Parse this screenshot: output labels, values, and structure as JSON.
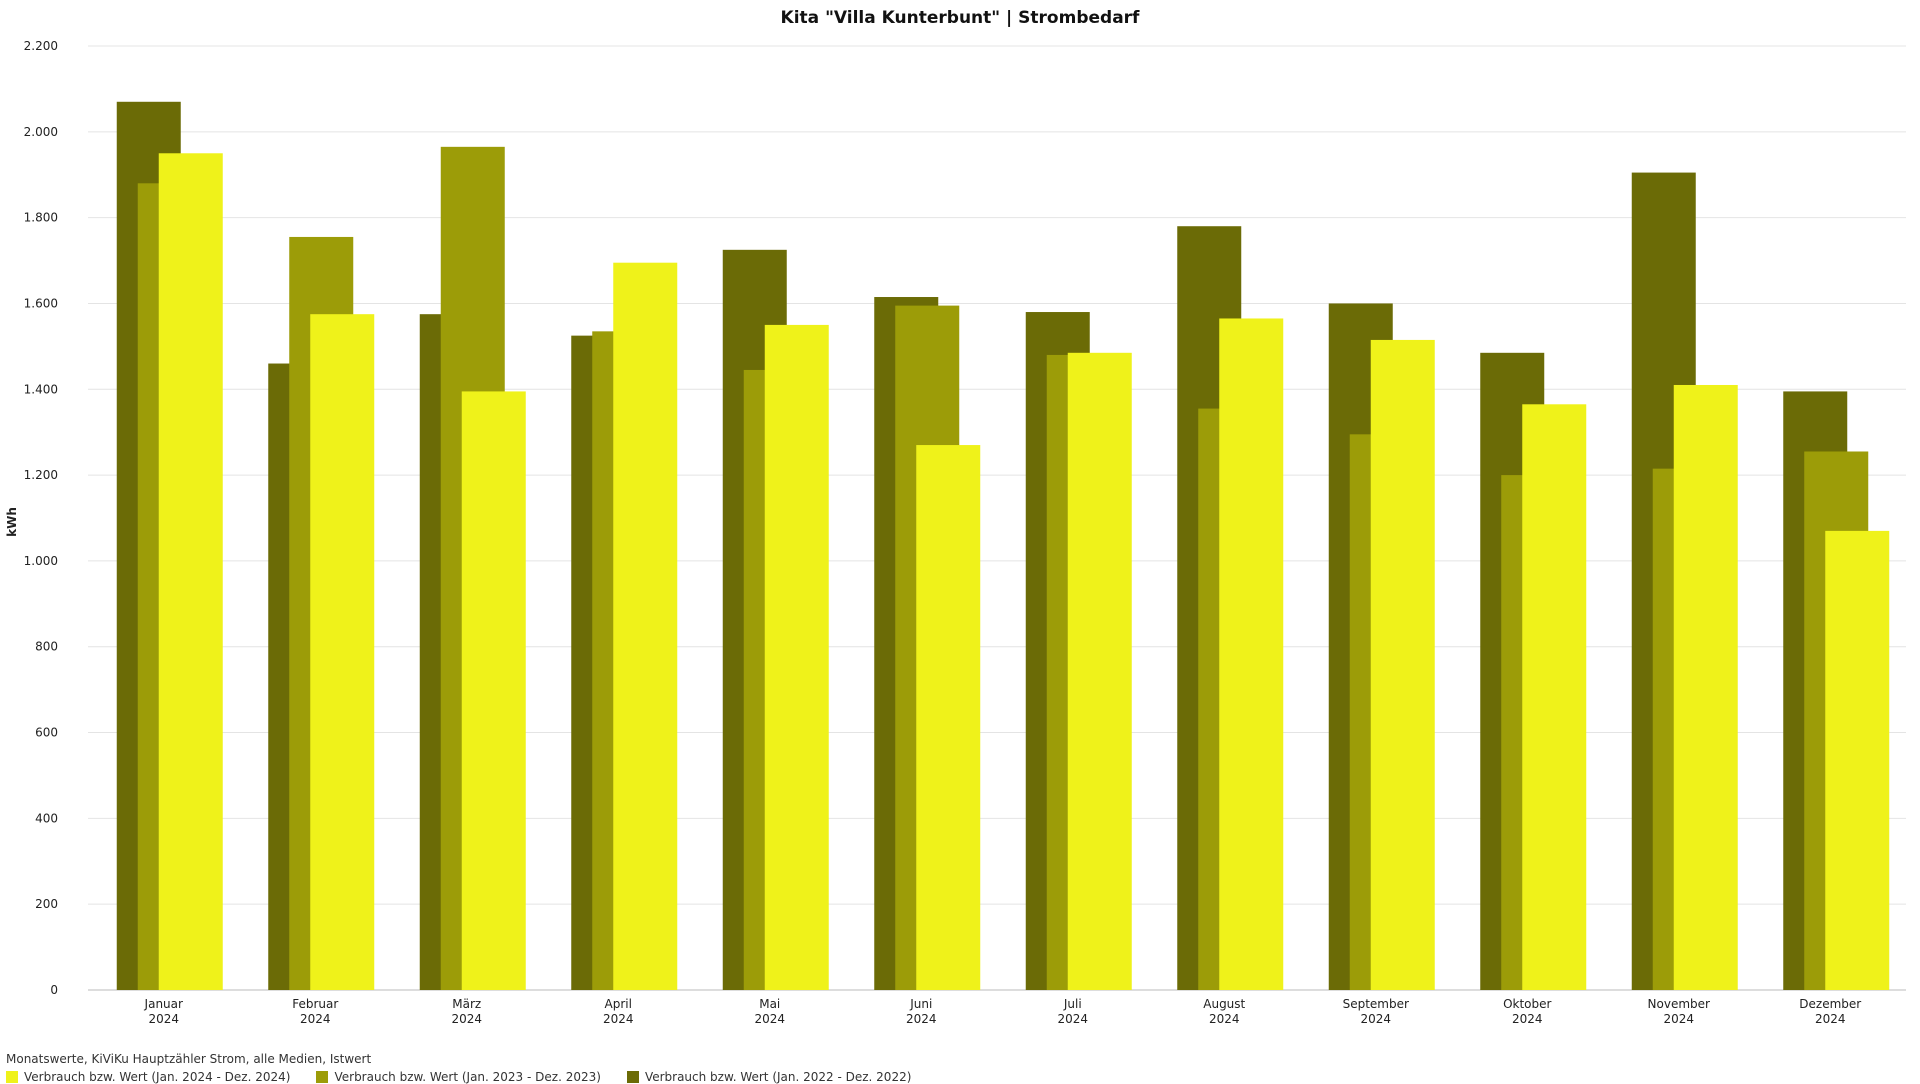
{
  "chart_data": {
    "type": "bar",
    "title": "Kita \"Villa Kunterbunt\" | Strombedarf",
    "subtitle": "Monatswerte, KiViKu Hauptzähler Strom, alle Medien, Istwert",
    "xlabel": "",
    "ylabel": "kWh",
    "ylim": [
      0,
      2200
    ],
    "yticks": [
      0,
      200,
      400,
      600,
      800,
      1000,
      1200,
      1400,
      1600,
      1800,
      2000,
      2200
    ],
    "ytick_labels": [
      "0",
      "200",
      "400",
      "600",
      "800",
      "1.000",
      "1.200",
      "1.400",
      "1.600",
      "1.800",
      "2.000",
      "2.200"
    ],
    "grid": true,
    "legend_position": "bottom-left",
    "categories": [
      {
        "month": "Januar",
        "year": "2024"
      },
      {
        "month": "Februar",
        "year": "2024"
      },
      {
        "month": "März",
        "year": "2024"
      },
      {
        "month": "April",
        "year": "2024"
      },
      {
        "month": "Mai",
        "year": "2024"
      },
      {
        "month": "Juni",
        "year": "2024"
      },
      {
        "month": "Juli",
        "year": "2024"
      },
      {
        "month": "August",
        "year": "2024"
      },
      {
        "month": "September",
        "year": "2024"
      },
      {
        "month": "Oktober",
        "year": "2024"
      },
      {
        "month": "November",
        "year": "2024"
      },
      {
        "month": "Dezember",
        "year": "2024"
      }
    ],
    "series": [
      {
        "name": "Verbrauch bzw. Wert (Jan. 2022 - Dez. 2022)",
        "color": "#6b6b06",
        "values": [
          2070,
          1460,
          1575,
          1525,
          1725,
          1615,
          1580,
          1780,
          1600,
          1485,
          1905,
          1395
        ]
      },
      {
        "name": "Verbrauch bzw. Wert (Jan. 2023 - Dez. 2023)",
        "color": "#9c9c08",
        "values": [
          1880,
          1755,
          1965,
          1535,
          1445,
          1595,
          1480,
          1355,
          1295,
          1200,
          1215,
          1255
        ]
      },
      {
        "name": "Verbrauch bzw. Wert (Jan. 2024 - Dez. 2024)",
        "color": "#eff21a",
        "values": [
          1950,
          1575,
          1395,
          1695,
          1550,
          1270,
          1485,
          1565,
          1515,
          1365,
          1410,
          1070
        ]
      }
    ],
    "legend_order": [
      2,
      1,
      0
    ]
  }
}
